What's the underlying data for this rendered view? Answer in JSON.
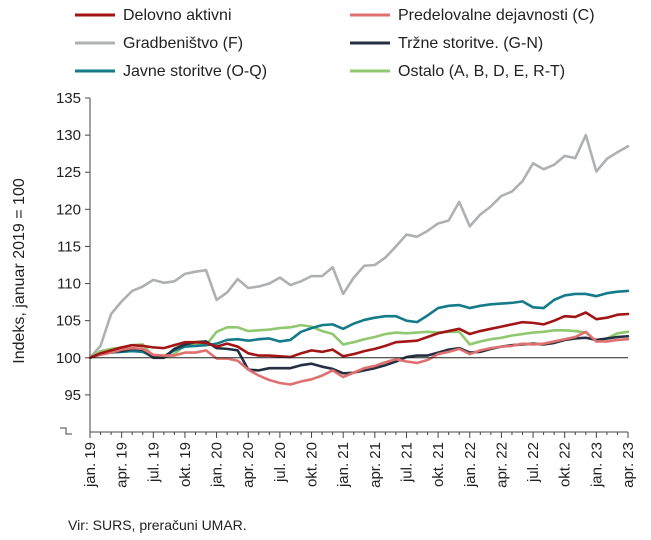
{
  "chart_data": {
    "type": "line",
    "title": "",
    "xlabel": "",
    "ylabel": "Indeks, januar 2019 = 100",
    "ylim": [
      90,
      135
    ],
    "yticks": [
      95,
      100,
      105,
      110,
      115,
      120,
      125,
      130,
      135
    ],
    "ytick_labels": [
      "95",
      "100",
      "105",
      "110",
      "115",
      "120",
      "125",
      "130",
      "135"
    ],
    "reference_line": 100,
    "grid": false,
    "legend_position": "top",
    "x": [
      "jan. 19",
      "feb. 19",
      "mar. 19",
      "apr. 19",
      "maj 19",
      "jun. 19",
      "jul. 19",
      "avg. 19",
      "sep. 19",
      "okt. 19",
      "nov. 19",
      "dec. 19",
      "jan. 20",
      "feb. 20",
      "mar. 20",
      "apr. 20",
      "maj 20",
      "jun. 20",
      "jul. 20",
      "avg. 20",
      "sep. 20",
      "okt. 20",
      "nov. 20",
      "dec. 20",
      "jan. 21",
      "feb. 21",
      "mar. 21",
      "apr. 21",
      "maj 21",
      "jun. 21",
      "jul. 21",
      "avg. 21",
      "sep. 21",
      "okt. 21",
      "nov. 21",
      "dec. 21",
      "jan. 22",
      "feb. 22",
      "mar. 22",
      "apr. 22",
      "maj 22",
      "jun. 22",
      "jul. 22",
      "avg. 22",
      "sep. 22",
      "okt. 22",
      "nov. 22",
      "dec. 22",
      "jan. 23",
      "feb. 23",
      "mar. 23",
      "apr. 23"
    ],
    "xtick_labels": [
      "jan. 19",
      "apr. 19",
      "jul. 19",
      "okt. 19",
      "jan. 20",
      "apr. 20",
      "jul. 20",
      "okt. 20",
      "jan. 21",
      "apr. 21",
      "jul. 21",
      "okt. 21",
      "jan. 22",
      "apr. 22",
      "jul. 22",
      "okt. 22",
      "jan. 23",
      "apr. 23"
    ],
    "series": [
      {
        "name": "Delovno aktivni",
        "color": "#a31515",
        "values": [
          100,
          100.6,
          101,
          101.4,
          101.7,
          101.6,
          101.4,
          101.3,
          101.7,
          102.1,
          102.1,
          102,
          101.5,
          101.9,
          101.5,
          100.6,
          100.3,
          100.3,
          100.2,
          100.1,
          100.6,
          101,
          100.8,
          101.1,
          100.2,
          100.5,
          100.9,
          101.2,
          101.6,
          102.1,
          102.2,
          102.3,
          102.8,
          103.3,
          103.6,
          103.9,
          103.2,
          103.6,
          103.9,
          104.2,
          104.5,
          104.8,
          104.7,
          104.5,
          105,
          105.6,
          105.5,
          106.1,
          105.2,
          105.4,
          105.8,
          105.9
        ]
      },
      {
        "name": "Predelovalne dejavnosti (C)",
        "color": "#e07070",
        "values": [
          100,
          100.4,
          100.7,
          101.1,
          101.3,
          101.2,
          100.4,
          100.3,
          100.3,
          100.7,
          100.7,
          101,
          99.9,
          99.9,
          99.6,
          98.4,
          97.6,
          97,
          96.6,
          96.4,
          96.8,
          97.1,
          97.6,
          98.3,
          97.4,
          98,
          98.6,
          98.9,
          99.4,
          99.8,
          99.5,
          99.3,
          99.7,
          100.5,
          100.8,
          101.2,
          100.5,
          101,
          101.3,
          101.5,
          101.6,
          101.9,
          101.8,
          101.9,
          102.2,
          102.5,
          102.8,
          103.5,
          102.2,
          102.2,
          102.4,
          102.5
        ]
      },
      {
        "name": "Gradbeništvo (F)",
        "color": "#aeb0b2",
        "values": [
          100,
          101.6,
          105.9,
          107.6,
          109,
          109.6,
          110.5,
          110.1,
          110.3,
          111.3,
          111.6,
          111.8,
          107.8,
          108.8,
          110.6,
          109.4,
          109.6,
          110,
          110.8,
          109.8,
          110.3,
          111,
          111,
          112.2,
          108.6,
          110.8,
          112.4,
          112.5,
          113.5,
          115,
          116.6,
          116.3,
          117.1,
          118.1,
          118.5,
          121,
          117.7,
          119.3,
          120.4,
          121.8,
          122.4,
          123.8,
          126.2,
          125.4,
          126,
          127.2,
          126.9,
          130,
          125.1,
          126.8,
          127.7,
          128.5
        ]
      },
      {
        "name": "Tržne storitve. (G-N)",
        "color": "#243042",
        "values": [
          100,
          100.5,
          100.8,
          100.9,
          101.2,
          101.1,
          100,
          100,
          101.2,
          101.8,
          102.1,
          102.2,
          101.3,
          101.2,
          101,
          98.4,
          98.3,
          98.6,
          98.6,
          98.6,
          99,
          99.2,
          98.8,
          98.5,
          97.9,
          98,
          98.3,
          98.6,
          99,
          99.5,
          100.1,
          100.3,
          100.3,
          100.7,
          101.1,
          101.3,
          100.7,
          100.8,
          101.2,
          101.5,
          101.7,
          101.8,
          101.9,
          101.8,
          102,
          102.4,
          102.6,
          102.7,
          102.4,
          102.6,
          102.8,
          102.9
        ]
      },
      {
        "name": "Javne storitve (O-Q)",
        "color": "#157a8a",
        "values": [
          100,
          100.6,
          100.7,
          100.8,
          100.9,
          100.8,
          100.1,
          100.2,
          101,
          101.5,
          101.6,
          101.7,
          101.9,
          102.4,
          102.5,
          102.3,
          102.5,
          102.6,
          102.2,
          102.4,
          103.5,
          104,
          104.4,
          104.5,
          103.9,
          104.6,
          105.1,
          105.4,
          105.6,
          105.6,
          105,
          104.8,
          105.7,
          106.7,
          107,
          107.1,
          106.7,
          107,
          107.2,
          107.3,
          107.4,
          107.6,
          106.8,
          106.7,
          107.8,
          108.4,
          108.6,
          108.6,
          108.3,
          108.7,
          108.9,
          109
        ]
      },
      {
        "name": "Ostalo (A, B, D, E, R-T)",
        "color": "#90c870",
        "values": [
          100,
          100.9,
          101.2,
          101.4,
          101.7,
          101.8,
          100.2,
          100,
          100.5,
          101.7,
          101.8,
          101.7,
          103.5,
          104.1,
          104.1,
          103.6,
          103.7,
          103.8,
          104,
          104.1,
          104.4,
          104.2,
          103.6,
          103.2,
          101.8,
          102.1,
          102.5,
          102.8,
          103.2,
          103.4,
          103.3,
          103.4,
          103.5,
          103.4,
          103.5,
          103.5,
          101.8,
          102.2,
          102.5,
          102.7,
          103,
          103.2,
          103.4,
          103.5,
          103.7,
          103.7,
          103.6,
          103.4,
          102.2,
          102.6,
          103.3,
          103.5
        ]
      }
    ]
  },
  "source_note": "Vir: SURS, preračuni UMAR."
}
